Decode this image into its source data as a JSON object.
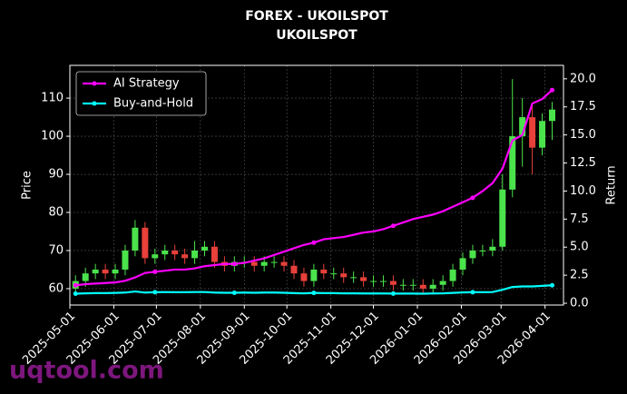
{
  "chart_data": {
    "type": "candlestick",
    "title": "FOREX - UKOILSPOT",
    "subtitle": "UKOILSPOT",
    "x": [
      "2025-05-05",
      "2025-05-12",
      "2025-05-19",
      "2025-05-26",
      "2025-06-02",
      "2025-06-09",
      "2025-06-16",
      "2025-06-23",
      "2025-06-30",
      "2025-07-07",
      "2025-07-14",
      "2025-07-21",
      "2025-07-28",
      "2025-08-04",
      "2025-08-11",
      "2025-08-18",
      "2025-08-25",
      "2025-09-01",
      "2025-09-08",
      "2025-09-15",
      "2025-09-22",
      "2025-09-29",
      "2025-10-06",
      "2025-10-13",
      "2025-10-20",
      "2025-10-27",
      "2025-11-03",
      "2025-11-10",
      "2025-11-17",
      "2025-11-24",
      "2025-12-01",
      "2025-12-08",
      "2025-12-15",
      "2025-12-22",
      "2025-12-29",
      "2026-01-05",
      "2026-01-12",
      "2026-01-19",
      "2026-01-26",
      "2026-02-02",
      "2026-02-09",
      "2026-02-16",
      "2026-02-23",
      "2026-03-02",
      "2026-03-09",
      "2026-03-16",
      "2026-03-23",
      "2026-03-30",
      "2026-04-06"
    ],
    "open": [
      60,
      62,
      64,
      65,
      64,
      65,
      70,
      76,
      68,
      69,
      70,
      69,
      68,
      70,
      71,
      67,
      66,
      67,
      67,
      66,
      67,
      67,
      66,
      64,
      62,
      65,
      64,
      64,
      63,
      63,
      62,
      62,
      62,
      61,
      61,
      61,
      60,
      61,
      62,
      65,
      68,
      70,
      70,
      71,
      86,
      100,
      105,
      97,
      104
    ],
    "high": [
      63.5,
      65.5,
      66.5,
      66.5,
      66.5,
      71.5,
      78,
      77.5,
      70.5,
      71.5,
      71.5,
      70.5,
      72.5,
      72.5,
      72.5,
      68.5,
      68.5,
      68.5,
      68.5,
      68.5,
      68.5,
      68.5,
      67.5,
      65.5,
      66.5,
      66.5,
      65.5,
      65.5,
      64.5,
      64.5,
      63.5,
      63.5,
      63.5,
      62.5,
      62.5,
      62.5,
      62.5,
      63.5,
      66.5,
      69.5,
      71.5,
      71.5,
      73,
      90,
      115,
      110,
      108,
      106,
      109
    ],
    "low": [
      58.5,
      60.5,
      62.5,
      62.5,
      62.5,
      63.5,
      68.5,
      66.5,
      66.5,
      67.5,
      67.5,
      66.5,
      66.5,
      68.5,
      65.5,
      64.5,
      64.5,
      65.5,
      64.5,
      64.5,
      65.5,
      64.5,
      62.5,
      60.5,
      60.5,
      62.5,
      62.5,
      61.5,
      61.5,
      60.5,
      60.5,
      60.5,
      59.5,
      59.5,
      59.5,
      58.5,
      58.5,
      59.5,
      60.5,
      63.5,
      66.5,
      68.5,
      68.5,
      70,
      84,
      92,
      90,
      95,
      99
    ],
    "close": [
      62,
      64,
      65,
      64,
      65,
      70,
      76,
      68,
      69,
      70,
      69,
      68,
      70,
      71,
      67,
      66,
      67,
      67,
      66,
      67,
      67,
      66,
      64,
      62,
      65,
      64,
      64,
      63,
      63,
      62,
      62,
      62,
      61,
      61,
      61,
      60,
      61,
      62,
      65,
      68,
      70,
      70,
      71,
      86,
      100,
      105,
      97,
      104,
      107
    ],
    "up_color": "#4be34b",
    "down_color": "#e8403a",
    "series": [
      {
        "name": "AI Strategy",
        "color": "#ff00ff",
        "axis": "y2",
        "values": [
          1.6,
          1.7,
          1.75,
          1.8,
          1.85,
          2.0,
          2.3,
          2.7,
          2.8,
          2.9,
          3.0,
          3.0,
          3.1,
          3.3,
          3.4,
          3.5,
          3.5,
          3.6,
          3.8,
          4.0,
          4.3,
          4.6,
          4.9,
          5.2,
          5.4,
          5.7,
          5.8,
          5.9,
          6.1,
          6.3,
          6.4,
          6.6,
          6.9,
          7.2,
          7.5,
          7.7,
          7.9,
          8.2,
          8.6,
          9.0,
          9.4,
          10.0,
          10.7,
          12.0,
          14.5,
          15.0,
          17.8,
          18.2,
          19.0
        ]
      },
      {
        "name": "Buy-and-Hold",
        "color": "#00ffff",
        "axis": "y2",
        "values": [
          0.85,
          0.88,
          0.9,
          0.9,
          0.92,
          0.95,
          1.05,
          0.95,
          0.98,
          1.0,
          0.98,
          0.98,
          1.0,
          1.0,
          0.95,
          0.93,
          0.93,
          0.95,
          0.93,
          0.95,
          0.95,
          0.93,
          0.9,
          0.88,
          0.92,
          0.9,
          0.9,
          0.88,
          0.88,
          0.87,
          0.87,
          0.87,
          0.86,
          0.86,
          0.86,
          0.85,
          0.87,
          0.88,
          0.92,
          0.96,
          0.98,
          0.98,
          1.0,
          1.2,
          1.45,
          1.5,
          1.5,
          1.55,
          1.6
        ]
      }
    ],
    "ylabel": "Price",
    "y2label": "Return",
    "xlim": [
      "2025-05-01",
      "2026-04-14"
    ],
    "xticks": [
      "2025-05-01",
      "2025-06-01",
      "2025-07-01",
      "2025-08-01",
      "2025-09-01",
      "2025-10-01",
      "2025-11-01",
      "2025-12-01",
      "2026-01-01",
      "2026-02-01",
      "2026-03-01",
      "2026-04-01"
    ],
    "ylim": [
      55.7,
      118.6
    ],
    "yticks": [
      60,
      70,
      80,
      90,
      100,
      110
    ],
    "y2lim": [
      -0.16,
      21.2
    ],
    "y2ticks": [
      {
        "value": 0,
        "label": "0.0"
      },
      {
        "value": 2.5,
        "label": "2.5"
      },
      {
        "value": 5,
        "label": "5.0"
      },
      {
        "value": 7.5,
        "label": "7.5"
      },
      {
        "value": 10,
        "label": "10.0"
      },
      {
        "value": 12.5,
        "label": "12.5"
      },
      {
        "value": 15,
        "label": "15.0"
      },
      {
        "value": 17.5,
        "label": "17.5"
      },
      {
        "value": 20,
        "label": "20.0"
      }
    ],
    "grid": true,
    "legend": "upper left",
    "watermark": "uqtool.com"
  }
}
